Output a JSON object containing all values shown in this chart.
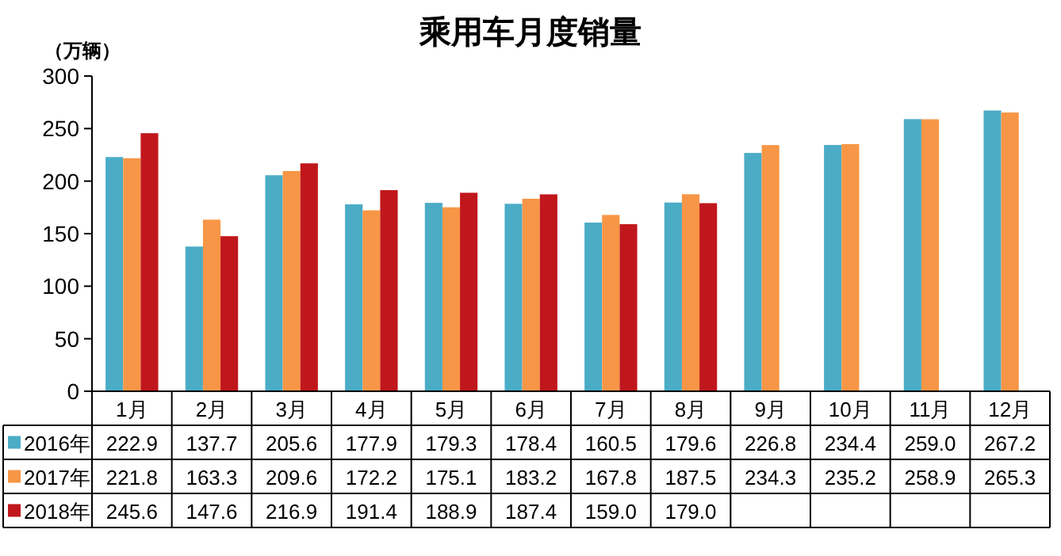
{
  "chart_data": {
    "type": "bar",
    "title": "乘用车月度销量",
    "ylabel": "（万辆）",
    "categories": [
      "1月",
      "2月",
      "3月",
      "4月",
      "5月",
      "6月",
      "7月",
      "8月",
      "9月",
      "10月",
      "11月",
      "12月"
    ],
    "ylim": [
      0,
      300
    ],
    "yticks": [
      0,
      50,
      100,
      150,
      200,
      250,
      300
    ],
    "grid": false,
    "legend": "bottom",
    "series": [
      {
        "name": "2016年",
        "color": "#4bacc6",
        "values": [
          222.9,
          137.7,
          205.6,
          177.9,
          179.3,
          178.4,
          160.5,
          179.6,
          226.8,
          234.4,
          259.0,
          267.2
        ],
        "value_labels": [
          "222.9",
          "137.7",
          "205.6",
          "177.9",
          "179.3",
          "178.4",
          "160.5",
          "179.6",
          "226.8",
          "234.4",
          "259.0",
          "267.2"
        ]
      },
      {
        "name": "2017年",
        "color": "#f79646",
        "values": [
          221.8,
          163.3,
          209.6,
          172.2,
          175.1,
          183.2,
          167.8,
          187.5,
          234.3,
          235.2,
          258.9,
          265.3
        ],
        "value_labels": [
          "221.8",
          "163.3",
          "209.6",
          "172.2",
          "175.1",
          "183.2",
          "167.8",
          "187.5",
          "234.3",
          "235.2",
          "258.9",
          "265.3"
        ]
      },
      {
        "name": "2018年",
        "color": "#c0171c",
        "values": [
          245.6,
          147.6,
          216.9,
          191.4,
          188.9,
          187.4,
          159.0,
          179.0,
          null,
          null,
          null,
          null
        ],
        "value_labels": [
          "245.6",
          "147.6",
          "216.9",
          "191.4",
          "188.9",
          "187.4",
          "159.0",
          "179.0",
          null,
          null,
          null,
          null
        ]
      }
    ]
  }
}
